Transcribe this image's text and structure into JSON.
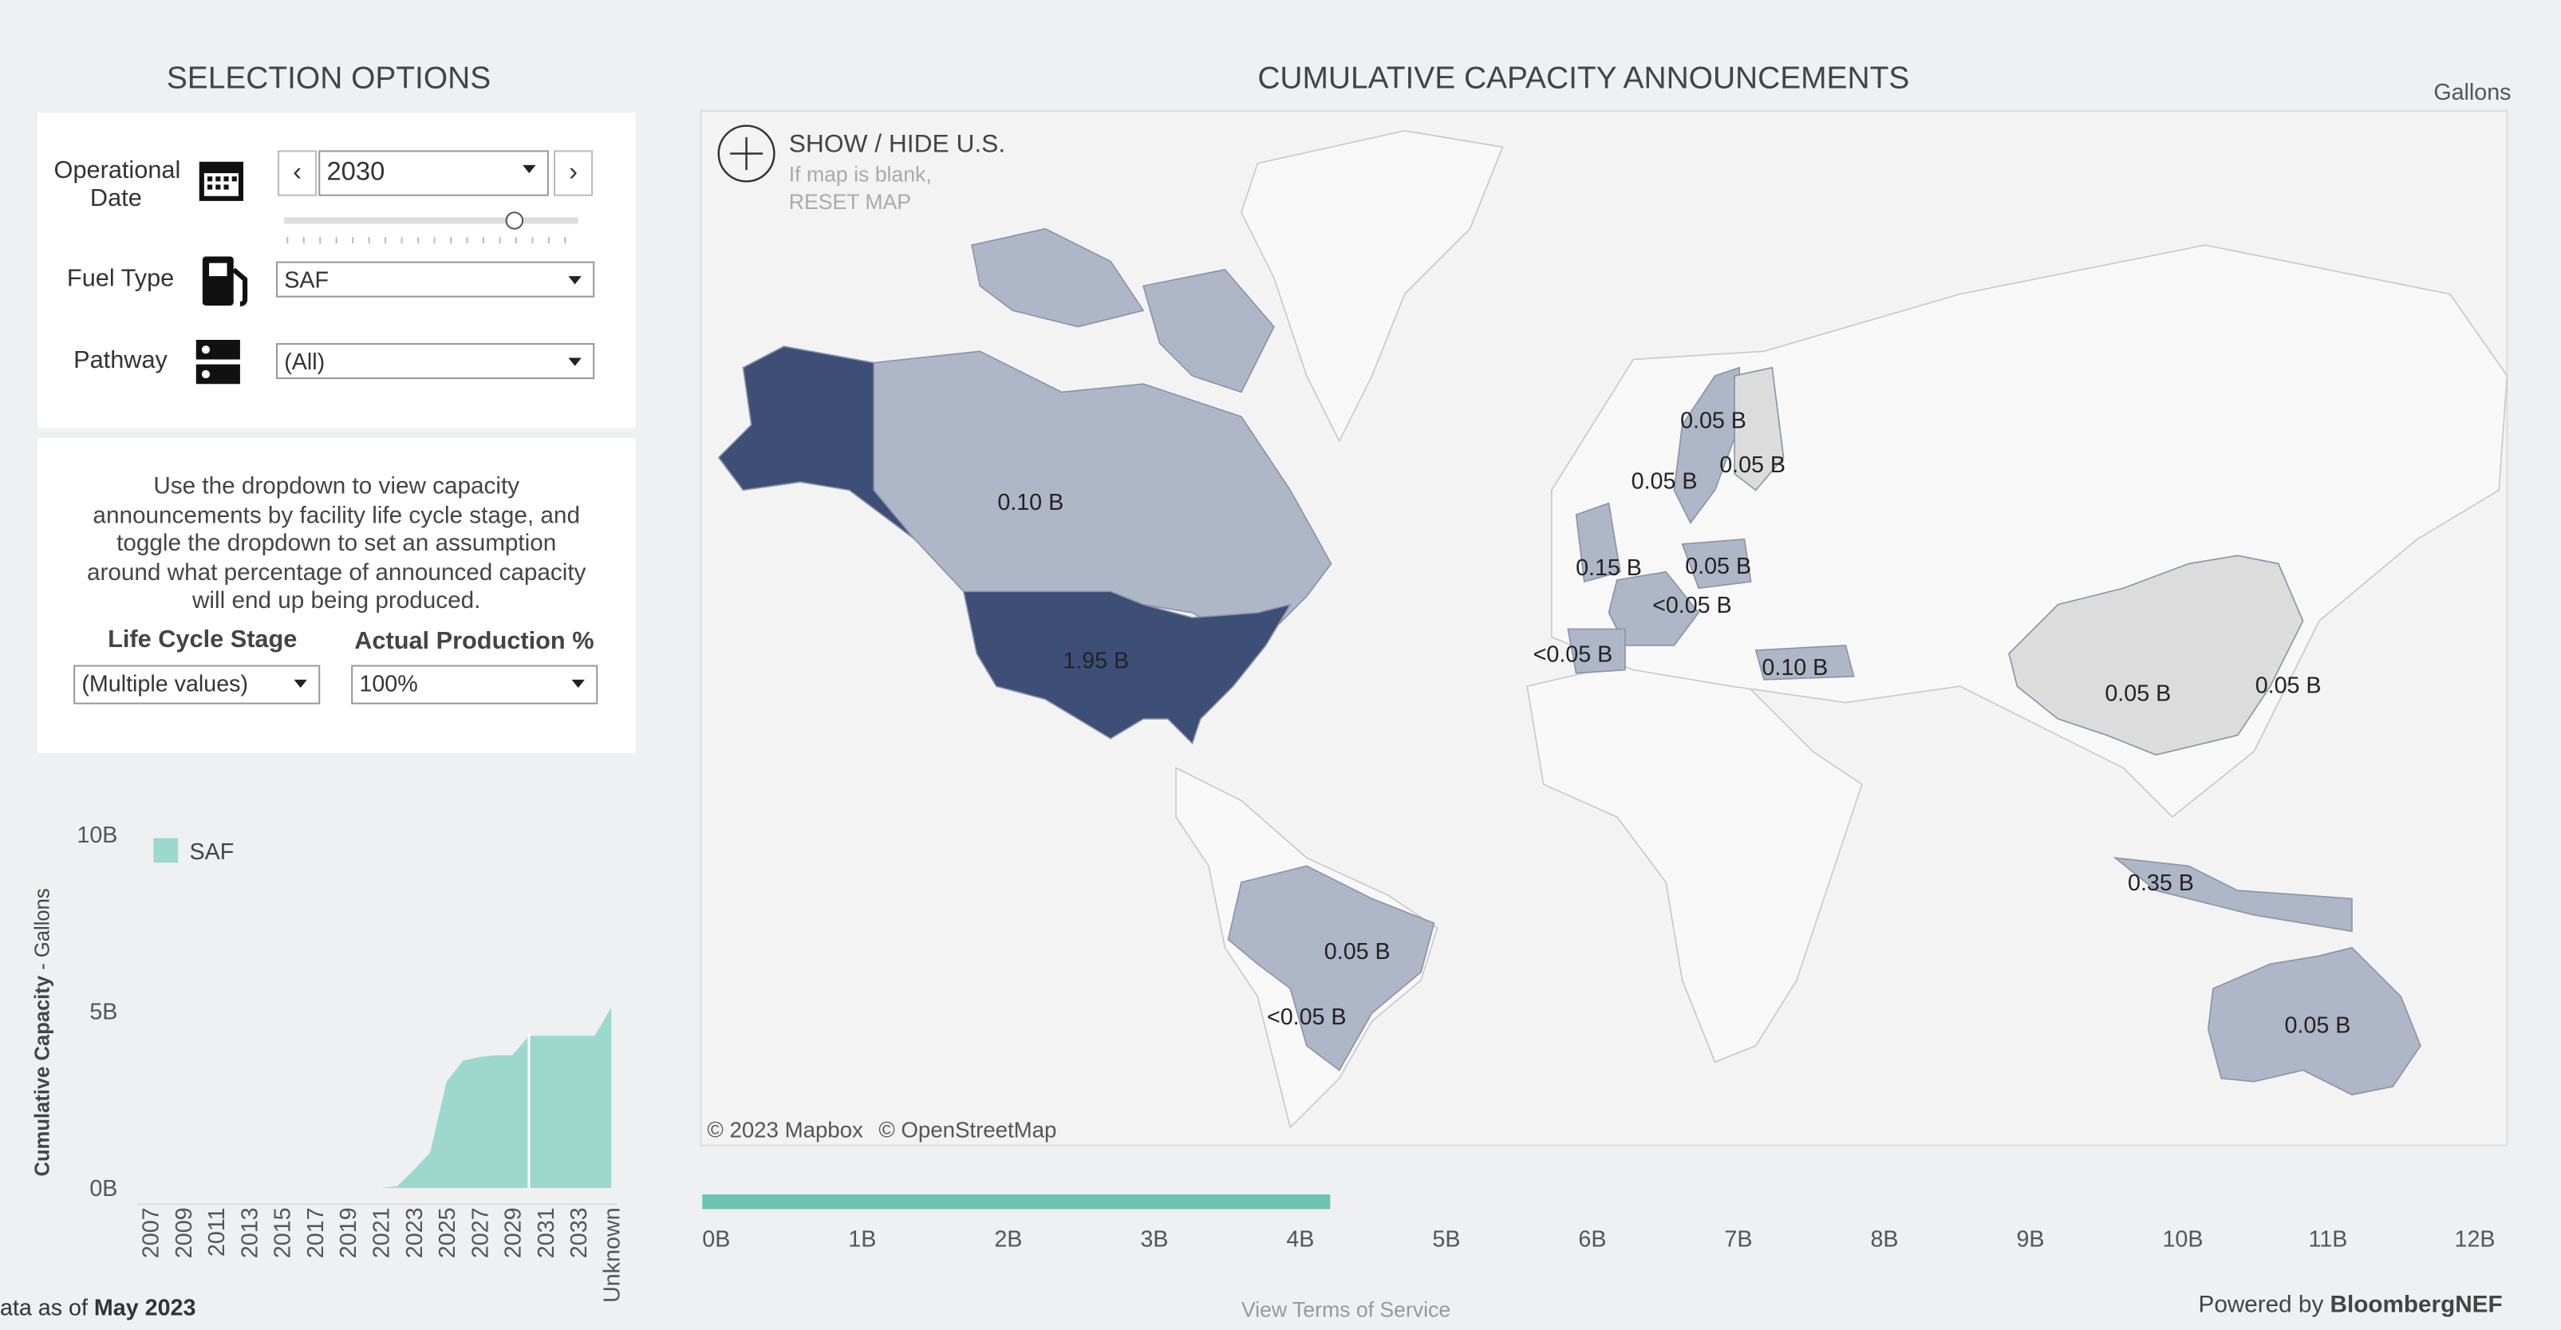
{
  "selection_options": {
    "title": "SELECTION OPTIONS",
    "operational_date": {
      "label_1": "Operational",
      "label_2": "Date",
      "value": "2030"
    },
    "fuel_type": {
      "label": "Fuel Type",
      "value": "SAF"
    },
    "pathway": {
      "label": "Pathway",
      "value": "(All)"
    }
  },
  "info": {
    "lines": [
      "Use the dropdown to view capacity",
      "announcements by facility life cycle stage, and",
      "toggle the dropdown to set an assumption",
      "around what percentage of announced capacity",
      "will end up being produced."
    ],
    "life_cycle_stage": {
      "label": "Life Cycle Stage",
      "value": "(Multiple values)"
    },
    "actual_production": {
      "label": "Actual Production %",
      "value": "100%"
    }
  },
  "map": {
    "title": "CUMULATIVE CAPACITY ANNOUNCEMENTS",
    "unit": "Gallons",
    "toggle_label": "SHOW / HIDE U.S.",
    "hint_1": "If map is blank,",
    "hint_2": "RESET MAP",
    "region_labels": [
      "0.10 B",
      "1.95 B",
      "0.05 B",
      "0.05 B",
      "0.05 B",
      "<0.05 B",
      "0.05 B",
      "0.15 B",
      "0.05 B",
      "<0.05 B",
      "<0.05 B",
      "0.10 B",
      "0.05 B",
      "0.05 B",
      "0.35 B",
      "0.05 B"
    ],
    "attribution_1": "© 2023 Mapbox",
    "attribution_2": "© OpenStreetMap"
  },
  "footer": {
    "data_as_of": "ata as of",
    "date": "May 2023",
    "terms": "View Terms of Service",
    "powered_by": "Powered by",
    "brand": "BloombergNEF"
  },
  "chart_data": [
    {
      "type": "area",
      "y_label": "Cumulative Capacity",
      "y_unit": "- Gallons",
      "categories": [
        "2007",
        null,
        "2009",
        null,
        "2011",
        null,
        "2013",
        null,
        "2015",
        null,
        "2017",
        null,
        "2019",
        null,
        "2021",
        null,
        "2023",
        null,
        "2025",
        null,
        "2027",
        null,
        "2029",
        null,
        "2031",
        null,
        "2033",
        null,
        "Unknown"
      ],
      "series": [
        {
          "name": "SAF",
          "color": "#9dd8cc",
          "values": [
            0,
            0,
            0,
            0,
            0,
            0,
            0,
            0,
            0,
            0,
            0,
            0,
            0,
            0,
            0,
            0.05,
            0.5,
            1.0,
            3.0,
            3.6,
            3.7,
            3.75,
            3.75,
            4.3,
            4.3,
            4.3,
            4.3,
            4.3,
            5.1
          ]
        }
      ],
      "ylim": [
        0,
        10.4
      ],
      "yticks": [
        {
          "value": 0,
          "label": "0B"
        },
        {
          "value": 5,
          "label": "5B"
        },
        {
          "value": 10,
          "label": "10B"
        }
      ]
    },
    {
      "type": "hbar",
      "values": [
        4.3
      ],
      "color": "#6cc3b2",
      "xlim": [
        0,
        12
      ],
      "xticks": [
        {
          "value": 0,
          "label": "0B"
        },
        {
          "value": 1,
          "label": "1B"
        },
        {
          "value": 2,
          "label": "2B"
        },
        {
          "value": 3,
          "label": "3B"
        },
        {
          "value": 4,
          "label": "4B"
        },
        {
          "value": 5,
          "label": "5B"
        },
        {
          "value": 6,
          "label": "6B"
        },
        {
          "value": 7,
          "label": "7B"
        },
        {
          "value": 8,
          "label": "8B"
        },
        {
          "value": 9,
          "label": "9B"
        },
        {
          "value": 10,
          "label": "10B"
        },
        {
          "value": 11,
          "label": "11B"
        },
        {
          "value": 12,
          "label": "12B"
        }
      ]
    }
  ]
}
